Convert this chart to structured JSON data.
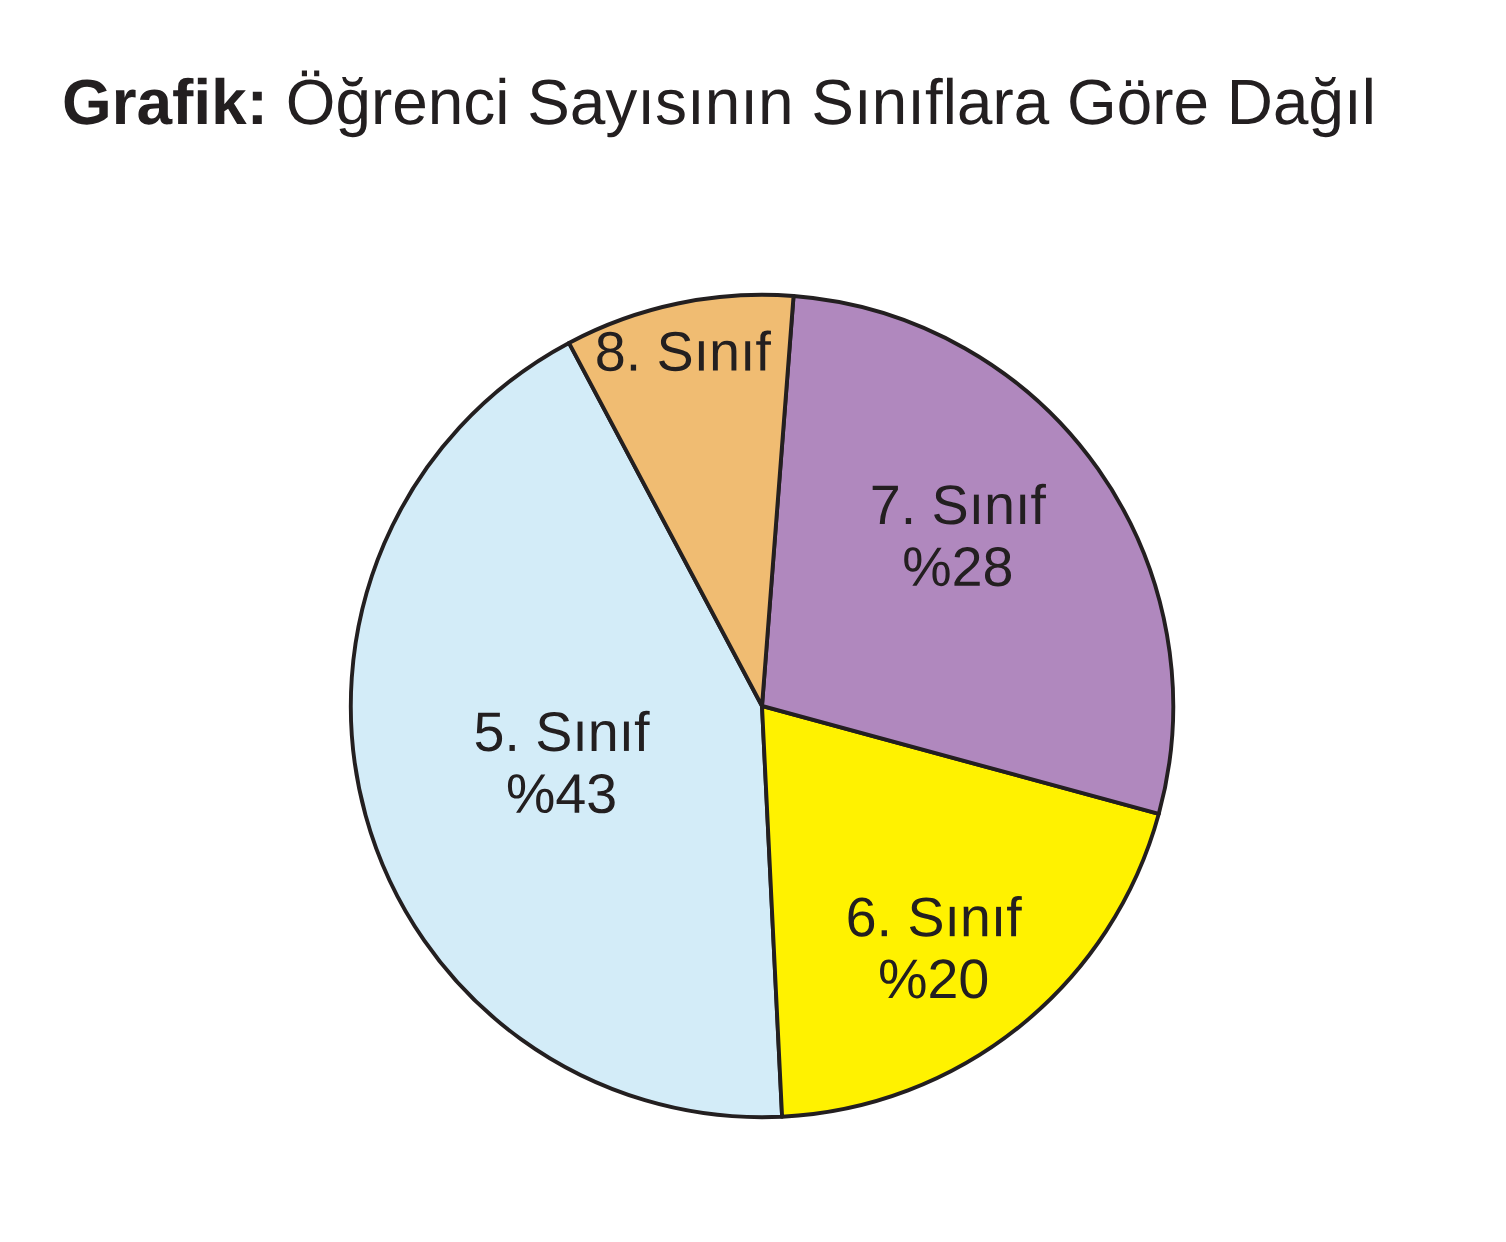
{
  "chart_data": {
    "type": "pie",
    "title": "Grafik: Öğrenci Sayısının Sınıflara Göre Dağıl",
    "categories": [
      "5. Sınıf",
      "6. Sınıf",
      "7. Sınıf",
      "8. Sınıf"
    ],
    "values": [
      43,
      20,
      28,
      9
    ],
    "value_labels": [
      "%43",
      "%20",
      "%28",
      null
    ],
    "colors": [
      "#d3ecf8",
      "#fff200",
      "#b088be",
      "#f0bc72"
    ]
  }
}
